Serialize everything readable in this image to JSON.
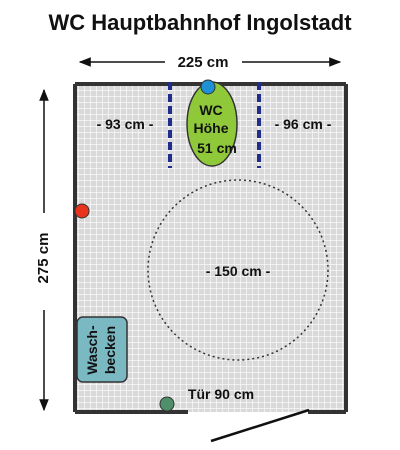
{
  "title": "WC Hauptbahnhof  Ingolstadt",
  "dimensions": {
    "width_label": "225 cm",
    "height_label": "275 cm"
  },
  "clearances": {
    "left": "- 93 cm -",
    "right": "- 96 cm -"
  },
  "toilet": {
    "line1": "WC",
    "line2": "Höhe",
    "line3": "51 cm"
  },
  "turning_circle": {
    "label": "- 150 cm -"
  },
  "sink": {
    "line1": "Wasch-",
    "line2": "becken"
  },
  "door": {
    "label": "Tür 90 cm"
  },
  "colors": {
    "floor": "#d9d9d9",
    "grid": "#ffffff",
    "wall": "#333333",
    "toilet": "#8fc93a",
    "flush_button": "#1e90d6",
    "alarm_button": "#e8341c",
    "door_handle": "#4f8f6a",
    "sink": "#7ab8c2",
    "grab_bar": "#1f2e8a"
  }
}
